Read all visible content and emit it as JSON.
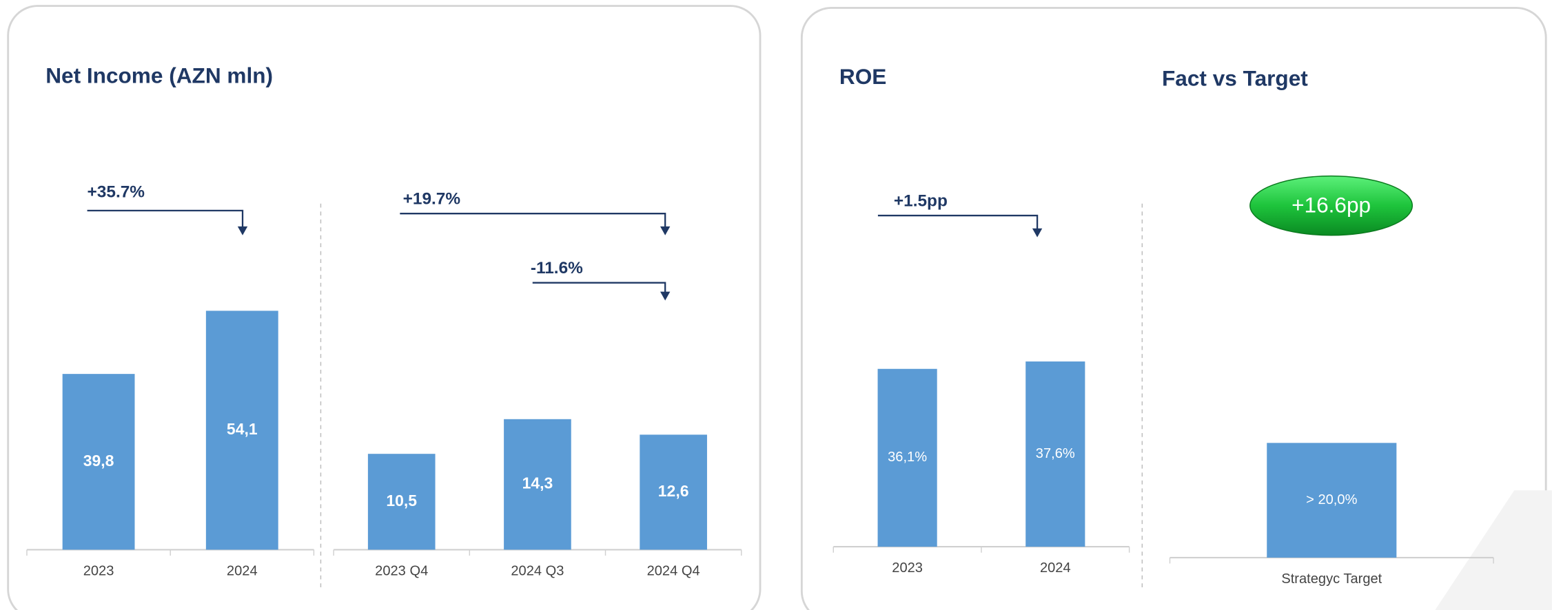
{
  "chart_data": [
    {
      "type": "bar",
      "title": "Net Income (AZN mln)",
      "categories": [
        "2023",
        "2024"
      ],
      "values": [
        39.8,
        54.1
      ],
      "value_labels": [
        "39,8",
        "54,1"
      ],
      "color": "#5b9bd5",
      "ylim": [
        0,
        60
      ],
      "annotations": [
        "+35.7%"
      ]
    },
    {
      "type": "bar",
      "categories": [
        "2023 Q4",
        "2024 Q3",
        "2024 Q4"
      ],
      "values": [
        10.5,
        14.3,
        12.6
      ],
      "value_labels": [
        "10,5",
        "14,3",
        "12,6"
      ],
      "color": "#5b9bd5",
      "ylim": [
        0,
        30
      ],
      "annotations": [
        "+19.7%",
        "-11.6%"
      ]
    },
    {
      "type": "bar",
      "title": "ROE",
      "categories": [
        "2023",
        "2024"
      ],
      "values": [
        36.1,
        37.6
      ],
      "value_labels": [
        "36,1%",
        "37,6%"
      ],
      "color": "#5b9bd5",
      "ylim": [
        0,
        60
      ],
      "annotations": [
        "+1.5pp"
      ]
    },
    {
      "type": "bar",
      "title": "Fact vs Target",
      "categories": [
        "Strategyc Target"
      ],
      "values": [
        20
      ],
      "value_labels": [
        "> 20,0%"
      ],
      "color": "#5b9bd5",
      "ylim": [
        0,
        40
      ],
      "annotations": [
        "+16.6pp"
      ]
    }
  ]
}
